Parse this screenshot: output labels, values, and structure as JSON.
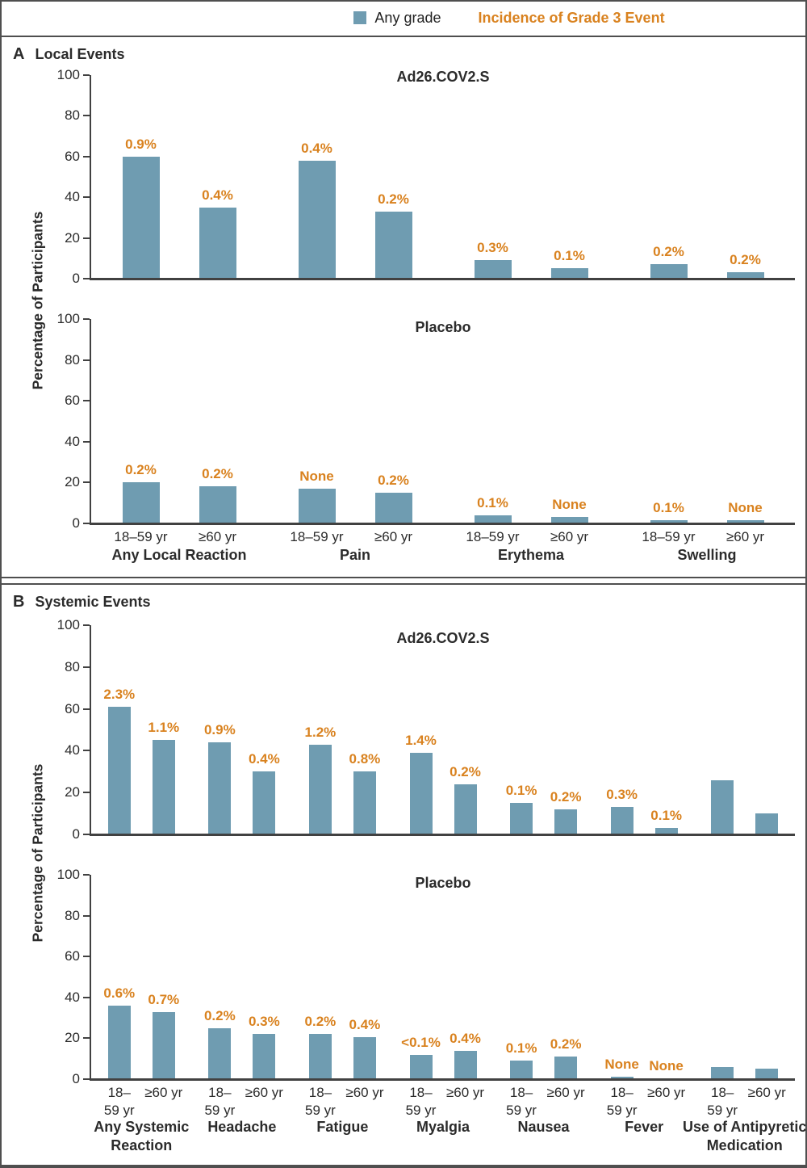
{
  "legend": {
    "any_grade_label": "Any grade",
    "grade3_label": "Incidence of Grade 3 Event"
  },
  "ylabel": "Percentage of Participants",
  "colors": {
    "bar": "#6f9cb1",
    "grade3": "#d9821f",
    "axis": "#414141",
    "border": "#4f4f4f"
  },
  "panels": [
    {
      "letter": "A",
      "heading": "Local Events",
      "charts": [
        0,
        1
      ]
    },
    {
      "letter": "B",
      "heading": "Systemic Events",
      "charts": [
        2,
        3
      ]
    }
  ],
  "chart_data": [
    {
      "type": "bar",
      "panel": "A",
      "title": "Ad26.COV2.S",
      "ylim": [
        0,
        100
      ],
      "yticks": [
        0,
        20,
        40,
        60,
        80,
        100
      ],
      "show_x_labels": false,
      "groups": [
        {
          "category_lines": [
            "Any Local Reaction"
          ],
          "bars": [
            {
              "age_lines": [
                "18–59 yr"
              ],
              "value": 60,
              "grade3": "0.9%"
            },
            {
              "age_lines": [
                "≥60 yr"
              ],
              "value": 35,
              "grade3": "0.4%"
            }
          ]
        },
        {
          "category_lines": [
            "Pain"
          ],
          "bars": [
            {
              "age_lines": [
                "18–59 yr"
              ],
              "value": 58,
              "grade3": "0.4%"
            },
            {
              "age_lines": [
                "≥60 yr"
              ],
              "value": 33,
              "grade3": "0.2%"
            }
          ]
        },
        {
          "category_lines": [
            "Erythema"
          ],
          "bars": [
            {
              "age_lines": [
                "18–59 yr"
              ],
              "value": 9,
              "grade3": "0.3%"
            },
            {
              "age_lines": [
                "≥60 yr"
              ],
              "value": 5,
              "grade3": "0.1%"
            }
          ]
        },
        {
          "category_lines": [
            "Swelling"
          ],
          "bars": [
            {
              "age_lines": [
                "18–59 yr"
              ],
              "value": 7,
              "grade3": "0.2%"
            },
            {
              "age_lines": [
                "≥60 yr"
              ],
              "value": 3,
              "grade3": "0.2%"
            }
          ]
        }
      ]
    },
    {
      "type": "bar",
      "panel": "A",
      "title": "Placebo",
      "ylim": [
        0,
        100
      ],
      "yticks": [
        0,
        20,
        40,
        60,
        80,
        100
      ],
      "show_x_labels": true,
      "groups": [
        {
          "category_lines": [
            "Any Local Reaction"
          ],
          "bars": [
            {
              "age_lines": [
                "18–59 yr"
              ],
              "value": 20,
              "grade3": "0.2%"
            },
            {
              "age_lines": [
                "≥60 yr"
              ],
              "value": 18,
              "grade3": "0.2%"
            }
          ]
        },
        {
          "category_lines": [
            "Pain"
          ],
          "bars": [
            {
              "age_lines": [
                "18–59 yr"
              ],
              "value": 17,
              "grade3": "None"
            },
            {
              "age_lines": [
                "≥60 yr"
              ],
              "value": 15,
              "grade3": "0.2%"
            }
          ]
        },
        {
          "category_lines": [
            "Erythema"
          ],
          "bars": [
            {
              "age_lines": [
                "18–59 yr"
              ],
              "value": 4,
              "grade3": "0.1%"
            },
            {
              "age_lines": [
                "≥60 yr"
              ],
              "value": 3,
              "grade3": "None"
            }
          ]
        },
        {
          "category_lines": [
            "Swelling"
          ],
          "bars": [
            {
              "age_lines": [
                "18–59 yr"
              ],
              "value": 1.5,
              "grade3": "0.1%"
            },
            {
              "age_lines": [
                "≥60 yr"
              ],
              "value": 1.5,
              "grade3": "None"
            }
          ]
        }
      ]
    },
    {
      "type": "bar",
      "panel": "B",
      "title": "Ad26.COV2.S",
      "ylim": [
        0,
        100
      ],
      "yticks": [
        0,
        20,
        40,
        60,
        80,
        100
      ],
      "show_x_labels": false,
      "groups": [
        {
          "category_lines": [
            "Any Systemic",
            "Reaction"
          ],
          "bars": [
            {
              "age_lines": [
                "18–",
                "59 yr"
              ],
              "value": 61,
              "grade3": "2.3%"
            },
            {
              "age_lines": [
                "≥60 yr"
              ],
              "value": 45,
              "grade3": "1.1%"
            }
          ]
        },
        {
          "category_lines": [
            "Headache"
          ],
          "bars": [
            {
              "age_lines": [
                "18–",
                "59 yr"
              ],
              "value": 44,
              "grade3": "0.9%"
            },
            {
              "age_lines": [
                "≥60 yr"
              ],
              "value": 30,
              "grade3": "0.4%"
            }
          ]
        },
        {
          "category_lines": [
            "Fatigue"
          ],
          "bars": [
            {
              "age_lines": [
                "18–",
                "59 yr"
              ],
              "value": 43,
              "grade3": "1.2%"
            },
            {
              "age_lines": [
                "≥60 yr"
              ],
              "value": 30,
              "grade3": "0.8%"
            }
          ]
        },
        {
          "category_lines": [
            "Myalgia"
          ],
          "bars": [
            {
              "age_lines": [
                "18–",
                "59 yr"
              ],
              "value": 39,
              "grade3": "1.4%"
            },
            {
              "age_lines": [
                "≥60 yr"
              ],
              "value": 24,
              "grade3": "0.2%"
            }
          ]
        },
        {
          "category_lines": [
            "Nausea"
          ],
          "bars": [
            {
              "age_lines": [
                "18–",
                "59 yr"
              ],
              "value": 15,
              "grade3": "0.1%"
            },
            {
              "age_lines": [
                "≥60 yr"
              ],
              "value": 12,
              "grade3": "0.2%"
            }
          ]
        },
        {
          "category_lines": [
            "Fever"
          ],
          "bars": [
            {
              "age_lines": [
                "18–",
                "59 yr"
              ],
              "value": 13,
              "grade3": "0.3%"
            },
            {
              "age_lines": [
                "≥60 yr"
              ],
              "value": 3,
              "grade3": "0.1%"
            }
          ]
        },
        {
          "category_lines": [
            "Use of Antipyretic",
            "Medication"
          ],
          "bars": [
            {
              "age_lines": [
                "18–",
                "59 yr"
              ],
              "value": 26,
              "grade3": ""
            },
            {
              "age_lines": [
                "≥60 yr"
              ],
              "value": 10,
              "grade3": ""
            }
          ]
        }
      ]
    },
    {
      "type": "bar",
      "panel": "B",
      "title": "Placebo",
      "ylim": [
        0,
        100
      ],
      "yticks": [
        0,
        20,
        40,
        60,
        80,
        100
      ],
      "show_x_labels": true,
      "groups": [
        {
          "category_lines": [
            "Any Systemic",
            "Reaction"
          ],
          "bars": [
            {
              "age_lines": [
                "18–",
                "59 yr"
              ],
              "value": 36,
              "grade3": "0.6%"
            },
            {
              "age_lines": [
                "≥60 yr"
              ],
              "value": 33,
              "grade3": "0.7%"
            }
          ]
        },
        {
          "category_lines": [
            "Headache"
          ],
          "bars": [
            {
              "age_lines": [
                "18–",
                "59 yr"
              ],
              "value": 25,
              "grade3": "0.2%"
            },
            {
              "age_lines": [
                "≥60 yr"
              ],
              "value": 22,
              "grade3": "0.3%"
            }
          ]
        },
        {
          "category_lines": [
            "Fatigue"
          ],
          "bars": [
            {
              "age_lines": [
                "18–",
                "59 yr"
              ],
              "value": 22,
              "grade3": "0.2%"
            },
            {
              "age_lines": [
                "≥60 yr"
              ],
              "value": 20.5,
              "grade3": "0.4%"
            }
          ]
        },
        {
          "category_lines": [
            "Myalgia"
          ],
          "bars": [
            {
              "age_lines": [
                "18–",
                "59 yr"
              ],
              "value": 12,
              "grade3": "<0.1%"
            },
            {
              "age_lines": [
                "≥60 yr"
              ],
              "value": 14,
              "grade3": "0.4%"
            }
          ]
        },
        {
          "category_lines": [
            "Nausea"
          ],
          "bars": [
            {
              "age_lines": [
                "18–",
                "59 yr"
              ],
              "value": 9,
              "grade3": "0.1%"
            },
            {
              "age_lines": [
                "≥60 yr"
              ],
              "value": 11,
              "grade3": "0.2%"
            }
          ]
        },
        {
          "category_lines": [
            "Fever"
          ],
          "bars": [
            {
              "age_lines": [
                "18–",
                "59 yr"
              ],
              "value": 1,
              "grade3": "None"
            },
            {
              "age_lines": [
                "≥60 yr"
              ],
              "value": 0.5,
              "grade3": "None"
            }
          ]
        },
        {
          "category_lines": [
            "Use of Antipyretic",
            "Medication"
          ],
          "bars": [
            {
              "age_lines": [
                "18–",
                "59 yr"
              ],
              "value": 6,
              "grade3": ""
            },
            {
              "age_lines": [
                "≥60 yr"
              ],
              "value": 5,
              "grade3": ""
            }
          ]
        }
      ]
    }
  ]
}
